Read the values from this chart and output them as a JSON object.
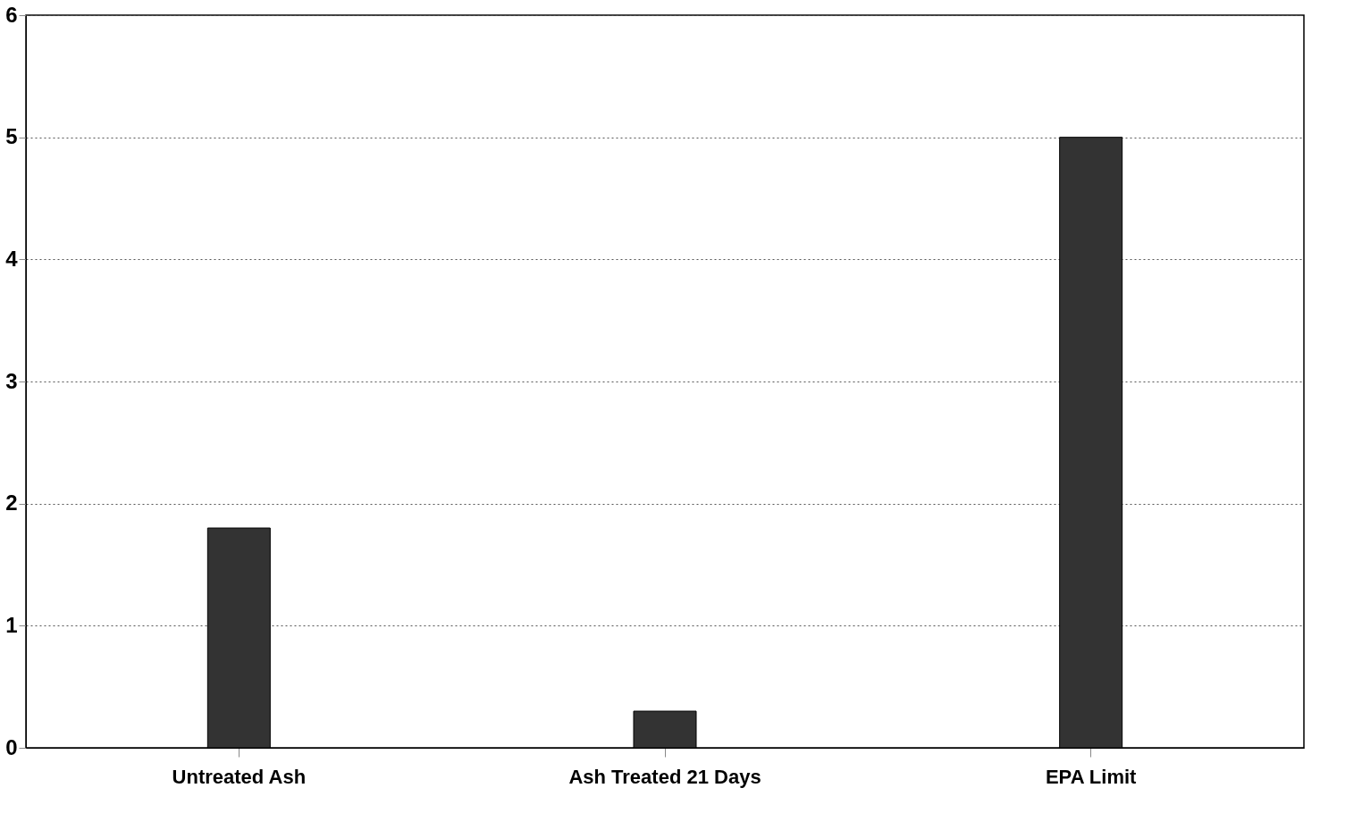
{
  "chart_data": {
    "type": "bar",
    "categories": [
      "Untreated Ash",
      "Ash Treated 21 Days",
      "EPA Limit"
    ],
    "values": [
      1.8,
      0.3,
      5.0
    ],
    "color": "#333333",
    "ylim": [
      0,
      6
    ],
    "yticks": [
      0,
      1,
      2,
      3,
      4,
      5,
      6
    ],
    "grid": "y"
  }
}
